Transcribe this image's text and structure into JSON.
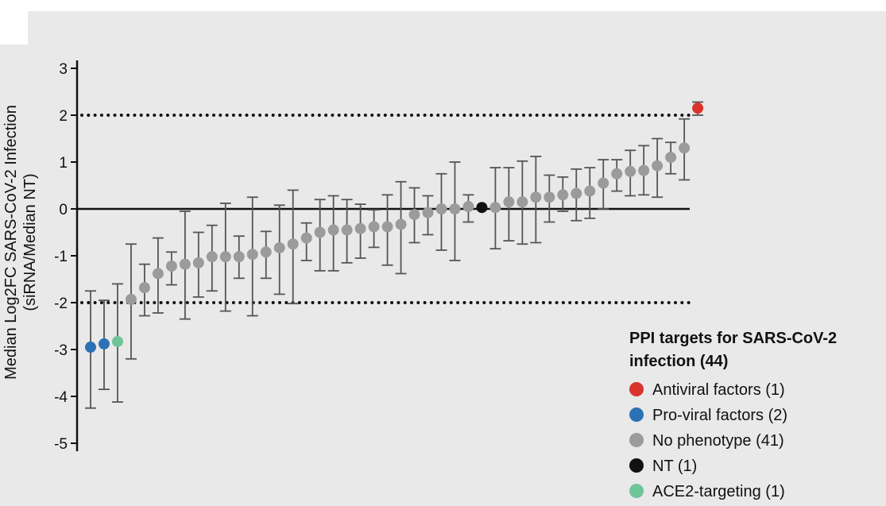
{
  "chart_data": {
    "type": "scatter",
    "title": "",
    "ylabel_line1": "Median Log2FC SARS-CoV-2 Infection",
    "ylabel_line2": "(siRNA/Median NT)",
    "ylim": [
      -5,
      3
    ],
    "yticks": [
      {
        "value": 3,
        "label": "3"
      },
      {
        "value": 2,
        "label": "2"
      },
      {
        "value": 1,
        "label": "1"
      },
      {
        "value": 0,
        "label": "0"
      },
      {
        "value": -1,
        "label": "-1"
      },
      {
        "value": -2,
        "label": "-2"
      },
      {
        "value": -3,
        "label": "-3"
      },
      {
        "value": -4,
        "label": "-4"
      },
      {
        "value": -5,
        "label": "-5"
      }
    ],
    "thresholds": [
      2,
      -2
    ],
    "colors": {
      "antiviral": "#d9342b",
      "proviral": "#2b72b5",
      "none": "#9b9b9b",
      "nt": "#111111",
      "ace2": "#6fc49a",
      "errorbar": "#555555",
      "background": "#e9e9e9"
    },
    "points": [
      {
        "y": -2.95,
        "lo": -4.25,
        "hi": -1.75,
        "cat": "proviral"
      },
      {
        "y": -2.88,
        "lo": -3.85,
        "hi": -1.95,
        "cat": "proviral"
      },
      {
        "y": -2.83,
        "lo": -4.12,
        "hi": -1.6,
        "cat": "ace2"
      },
      {
        "y": -1.93,
        "lo": -3.2,
        "hi": -0.75,
        "cat": "none"
      },
      {
        "y": -1.68,
        "lo": -2.28,
        "hi": -1.18,
        "cat": "none"
      },
      {
        "y": -1.38,
        "lo": -2.22,
        "hi": -0.62,
        "cat": "none"
      },
      {
        "y": -1.22,
        "lo": -1.62,
        "hi": -0.92,
        "cat": "none"
      },
      {
        "y": -1.18,
        "lo": -2.35,
        "hi": -0.05,
        "cat": "none"
      },
      {
        "y": -1.15,
        "lo": -1.88,
        "hi": -0.5,
        "cat": "none"
      },
      {
        "y": -1.02,
        "lo": -1.75,
        "hi": -0.35,
        "cat": "none"
      },
      {
        "y": -1.02,
        "lo": -2.18,
        "hi": 0.12,
        "cat": "none"
      },
      {
        "y": -1.02,
        "lo": -1.48,
        "hi": -0.58,
        "cat": "none"
      },
      {
        "y": -0.97,
        "lo": -2.28,
        "hi": 0.25,
        "cat": "none"
      },
      {
        "y": -0.92,
        "lo": -1.48,
        "hi": -0.48,
        "cat": "none"
      },
      {
        "y": -0.83,
        "lo": -1.82,
        "hi": 0.08,
        "cat": "none"
      },
      {
        "y": -0.75,
        "lo": -2.02,
        "hi": 0.4,
        "cat": "none"
      },
      {
        "y": -0.62,
        "lo": -1.1,
        "hi": -0.3,
        "cat": "none"
      },
      {
        "y": -0.5,
        "lo": -1.32,
        "hi": 0.2,
        "cat": "none"
      },
      {
        "y": -0.45,
        "lo": -1.32,
        "hi": 0.28,
        "cat": "none"
      },
      {
        "y": -0.45,
        "lo": -1.15,
        "hi": 0.2,
        "cat": "none"
      },
      {
        "y": -0.42,
        "lo": -1.05,
        "hi": 0.1,
        "cat": "none"
      },
      {
        "y": -0.38,
        "lo": -0.82,
        "hi": -0.02,
        "cat": "none"
      },
      {
        "y": -0.38,
        "lo": -1.2,
        "hi": 0.3,
        "cat": "none"
      },
      {
        "y": -0.33,
        "lo": -1.38,
        "hi": 0.58,
        "cat": "none"
      },
      {
        "y": -0.12,
        "lo": -0.72,
        "hi": 0.45,
        "cat": "none"
      },
      {
        "y": -0.08,
        "lo": -0.55,
        "hi": 0.28,
        "cat": "none"
      },
      {
        "y": 0.0,
        "lo": -0.88,
        "hi": 0.75,
        "cat": "none"
      },
      {
        "y": 0.0,
        "lo": -1.1,
        "hi": 1.0,
        "cat": "none"
      },
      {
        "y": 0.05,
        "lo": -0.28,
        "hi": 0.3,
        "cat": "none"
      },
      {
        "y": 0.03,
        "lo": null,
        "hi": null,
        "cat": "nt"
      },
      {
        "y": 0.03,
        "lo": -0.85,
        "hi": 0.88,
        "cat": "none"
      },
      {
        "y": 0.15,
        "lo": -0.68,
        "hi": 0.88,
        "cat": "none"
      },
      {
        "y": 0.15,
        "lo": -0.75,
        "hi": 1.02,
        "cat": "none"
      },
      {
        "y": 0.25,
        "lo": -0.72,
        "hi": 1.12,
        "cat": "none"
      },
      {
        "y": 0.25,
        "lo": -0.28,
        "hi": 0.72,
        "cat": "none"
      },
      {
        "y": 0.3,
        "lo": -0.05,
        "hi": 0.68,
        "cat": "none"
      },
      {
        "y": 0.33,
        "lo": -0.25,
        "hi": 0.85,
        "cat": "none"
      },
      {
        "y": 0.38,
        "lo": -0.2,
        "hi": 0.88,
        "cat": "none"
      },
      {
        "y": 0.55,
        "lo": 0.0,
        "hi": 1.05,
        "cat": "none"
      },
      {
        "y": 0.75,
        "lo": 0.38,
        "hi": 1.05,
        "cat": "none"
      },
      {
        "y": 0.8,
        "lo": 0.28,
        "hi": 1.25,
        "cat": "none"
      },
      {
        "y": 0.82,
        "lo": 0.3,
        "hi": 1.35,
        "cat": "none"
      },
      {
        "y": 0.92,
        "lo": 0.25,
        "hi": 1.5,
        "cat": "none"
      },
      {
        "y": 1.1,
        "lo": 0.75,
        "hi": 1.42,
        "cat": "none"
      },
      {
        "y": 1.3,
        "lo": 0.62,
        "hi": 1.92,
        "cat": "none"
      },
      {
        "y": 2.15,
        "lo": 2.0,
        "hi": 2.28,
        "cat": "antiviral"
      }
    ],
    "legend": {
      "position": "bottom-right",
      "title_line1": "PPI targets for SARS-CoV-2",
      "title_line2": "infection (44)",
      "entries": [
        {
          "cat": "antiviral",
          "label": "Antiviral factors (1)"
        },
        {
          "cat": "proviral",
          "label": "Pro-viral factors (2)"
        },
        {
          "cat": "none",
          "label": "No phenotype (41)"
        },
        {
          "cat": "nt",
          "label": "NT (1)"
        },
        {
          "cat": "ace2",
          "label": "ACE2-targeting (1)"
        }
      ]
    }
  }
}
